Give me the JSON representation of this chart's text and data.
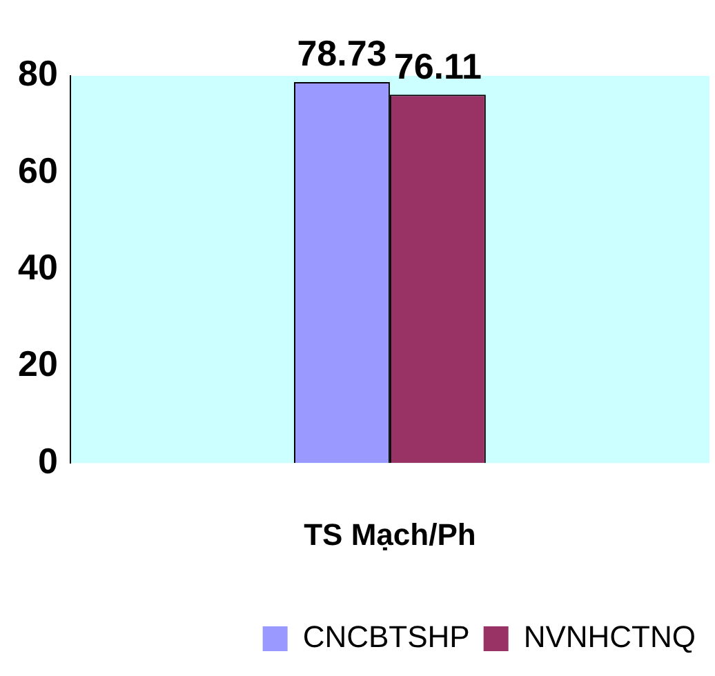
{
  "chart_data": {
    "type": "bar",
    "categories": [
      "TS Mạch/Ph"
    ],
    "series": [
      {
        "name": "CNCBTSHP",
        "color": "#9999ff",
        "values": [
          78.73
        ]
      },
      {
        "name": "NVNHCTNQ",
        "color": "#993366",
        "values": [
          76.11
        ]
      }
    ],
    "ylim": [
      0,
      80
    ],
    "yticks": [
      0,
      20,
      40,
      60,
      80
    ],
    "grid": false,
    "legend": "bottom right",
    "data_labels": true
  }
}
